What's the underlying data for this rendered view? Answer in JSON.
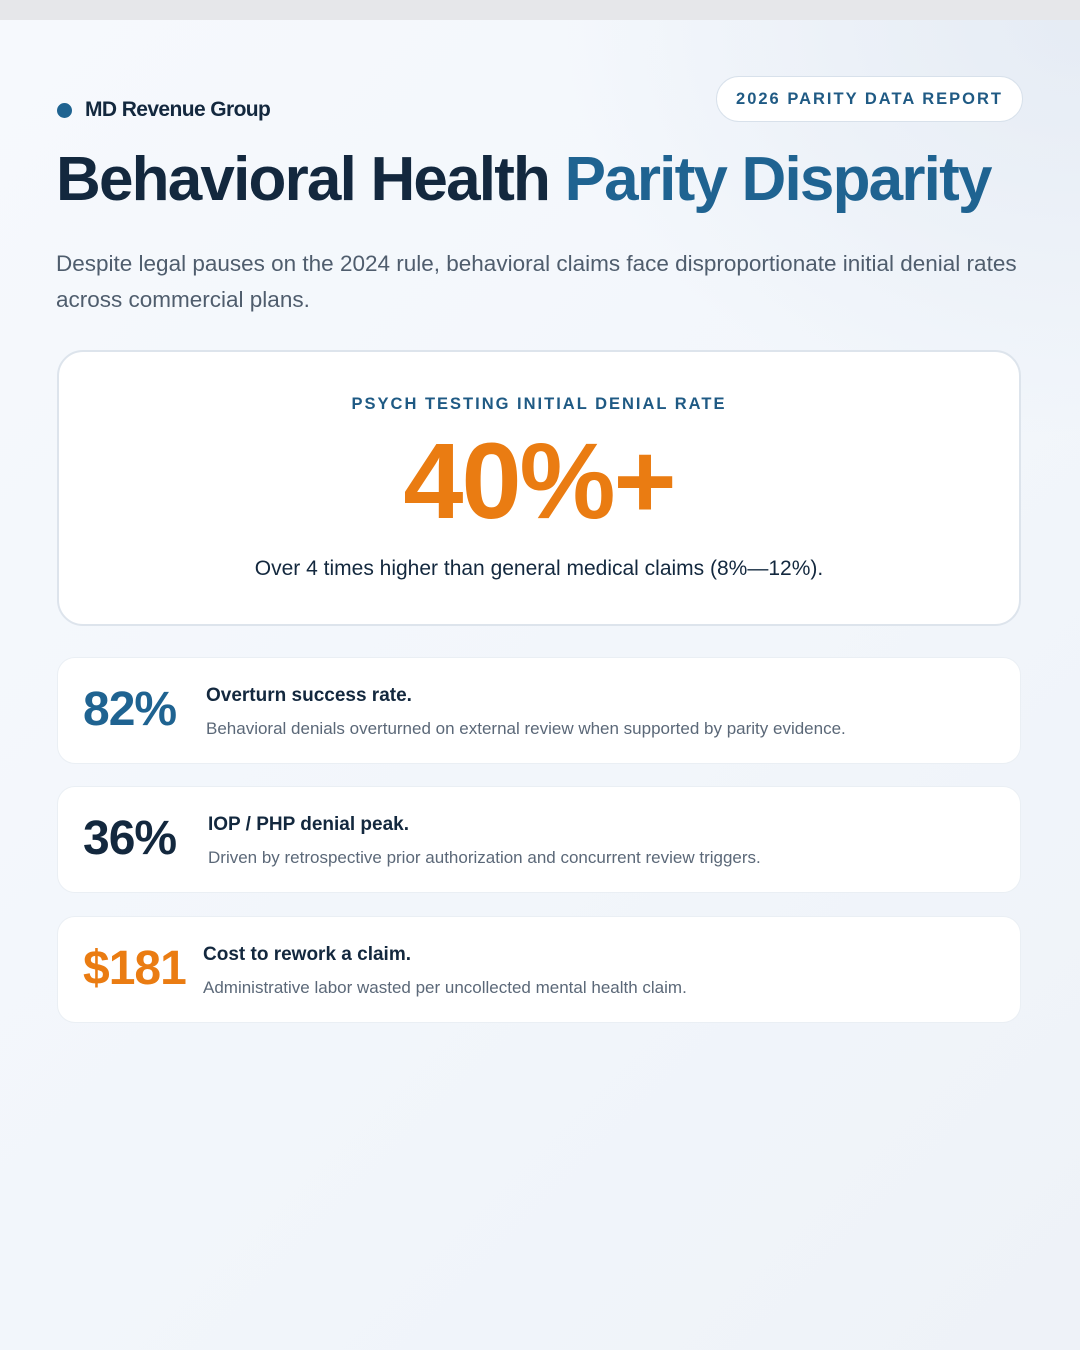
{
  "brand": {
    "name": "MD Revenue Group",
    "dot_color": "#1f6391"
  },
  "report_badge": "2026 PARITY DATA REPORT",
  "headline": {
    "part1": "Behavioral Health",
    "part2": "Parity Disparity"
  },
  "subheadline": "Despite legal pauses on the 2024 rule, behavioral claims face disproportionate initial denial rates across commercial plans.",
  "hero": {
    "label": "PSYCH TESTING INITIAL DENIAL RATE",
    "value": "40%+",
    "note": "Over 4 times higher than general medical claims (8%—12%)."
  },
  "stats": [
    {
      "value": "82%",
      "title": "Overturn success rate.",
      "description": "Behavioral denials overturned on external review when supported by parity evidence.",
      "color": "#1f6391"
    },
    {
      "value": "36%",
      "title": "IOP / PHP denial peak.",
      "description": "Driven by retrospective prior authorization and concurrent review triggers.",
      "color": "#13283e"
    },
    {
      "value": "$181",
      "title": "Cost to rework a claim.",
      "description": "Administrative labor wasted per uncollected mental health claim.",
      "color": "#ea7c12"
    }
  ],
  "colors": {
    "navy": "#13283e",
    "blue": "#1f6391",
    "orange": "#ea7c12"
  }
}
